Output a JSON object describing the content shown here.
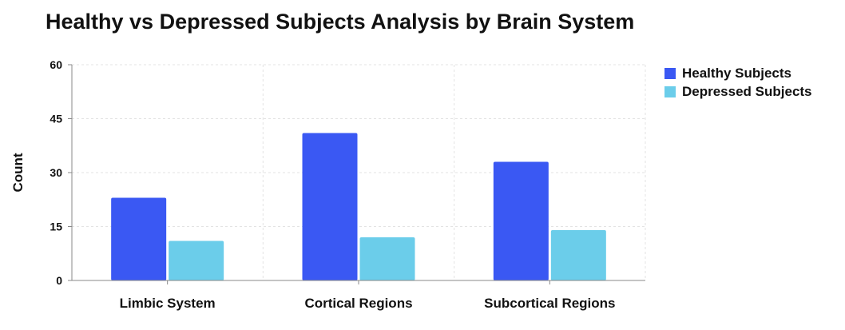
{
  "chart_data": {
    "type": "bar",
    "title": "Healthy vs Depressed Subjects Analysis by Brain System",
    "xlabel": "",
    "ylabel": "Count",
    "ylim": [
      0,
      60
    ],
    "yticks": [
      0,
      15,
      30,
      45,
      60
    ],
    "grid": true,
    "legend_position": "right",
    "categories": [
      "Limbic System",
      "Cortical Regions",
      "Subcortical Regions"
    ],
    "series": [
      {
        "name": "Healthy Subjects",
        "color": "#3a58f3",
        "values": [
          23,
          41,
          33
        ]
      },
      {
        "name": "Depressed Subjects",
        "color": "#6bcdea",
        "values": [
          11,
          12,
          14
        ]
      }
    ]
  }
}
